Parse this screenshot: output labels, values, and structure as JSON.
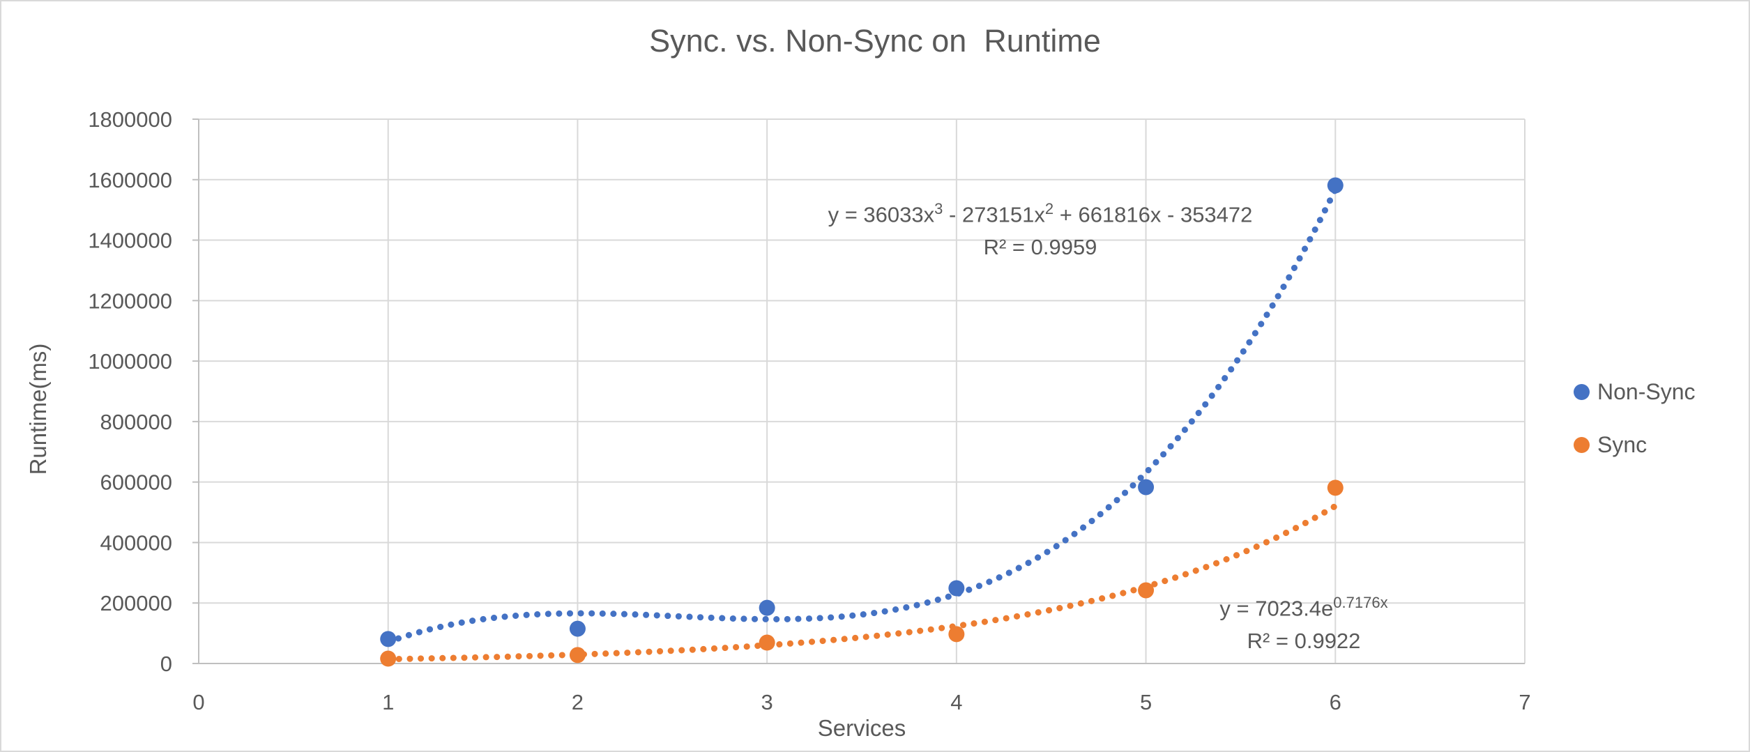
{
  "chart_data": {
    "type": "scatter",
    "title": "Sync. vs. Non-Sync on  Runtime",
    "xlabel": "Services",
    "ylabel": "Runtime(ms)",
    "xlim": [
      0,
      7
    ],
    "ylim": [
      0,
      1800000
    ],
    "x_ticks": [
      0,
      1,
      2,
      3,
      4,
      5,
      6,
      7
    ],
    "y_ticks": [
      0,
      200000,
      400000,
      600000,
      800000,
      1000000,
      1200000,
      1400000,
      1600000,
      1800000
    ],
    "grid": true,
    "legend_position": "right-middle",
    "colors": {
      "text": "#595959",
      "gridline": "#D9D9D9",
      "axis": "#BFBFBF",
      "background": "#FFFFFF",
      "border": "#D9D9D9"
    },
    "series": [
      {
        "name": "Non-Sync",
        "color": "#4472C4",
        "x": [
          1,
          2,
          3,
          4,
          5,
          6
        ],
        "y": [
          81000,
          115000,
          184000,
          249000,
          583000,
          1581000
        ],
        "trendline": {
          "kind": "polynomial",
          "coefficients": [
            36033,
            -273151,
            661816,
            -353472
          ],
          "equation_text": "y = 36033x³ - 273151x² + 661816x - 353472",
          "equation_segments": [
            {
              "text": "y = 36033x",
              "sup": false
            },
            {
              "text": "3",
              "sup": true
            },
            {
              "text": " - 273151x",
              "sup": false
            },
            {
              "text": "2",
              "sup": true
            },
            {
              "text": " + 661816x - 353472",
              "sup": false
            }
          ],
          "r2": "R² = 0.9959"
        }
      },
      {
        "name": "Sync",
        "color": "#ED7D31",
        "x": [
          1,
          2,
          3,
          4,
          5,
          6
        ],
        "y": [
          16000,
          28000,
          69000,
          97000,
          242000,
          581000
        ],
        "trendline": {
          "kind": "exponential",
          "a": 7023.4,
          "b": 0.7176,
          "equation_text": "y = 7023.4e^(0.7176x)",
          "equation_segments": [
            {
              "text": "y = 7023.4e",
              "sup": false
            },
            {
              "text": "0.7176x",
              "sup": true
            }
          ],
          "r2": "R² = 0.9922"
        }
      }
    ]
  }
}
